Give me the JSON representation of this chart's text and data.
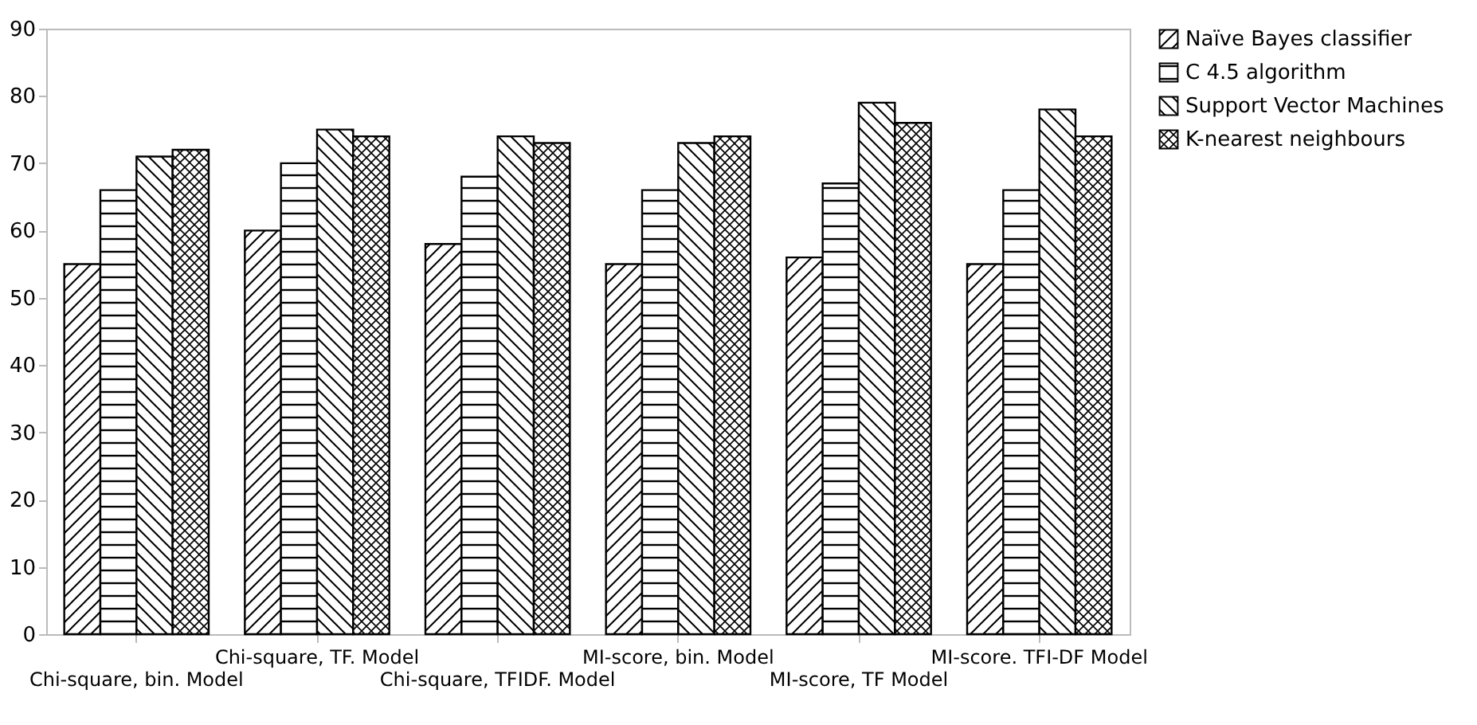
{
  "chart_data": {
    "type": "bar",
    "categories": [
      "Chi-square, bin. Model",
      "Chi-square, TF. Model",
      "Chi-square, TFIDF. Model",
      "MI-score, bin. Model",
      "MI-score, TF Model",
      "MI-score. TFI-DF Model"
    ],
    "series": [
      {
        "name": "Naïve Bayes classifier",
        "color": "#000000",
        "values": [
          55,
          60,
          58,
          55,
          56,
          55
        ]
      },
      {
        "name": "C 4.5 algorithm",
        "color": "#000000",
        "values": [
          66,
          70,
          68,
          66,
          67,
          66
        ]
      },
      {
        "name": "Support Vector Machines",
        "color": "#000000",
        "values": [
          71,
          75,
          74,
          73,
          79,
          78
        ]
      },
      {
        "name": "K-nearest neighbours",
        "color": "#000000",
        "values": [
          72,
          74,
          73,
          74,
          76,
          74
        ]
      }
    ],
    "ylim": [
      0,
      90
    ],
    "yticks": [
      0,
      10,
      20,
      30,
      40,
      50,
      60,
      70,
      80,
      90
    ],
    "grid": false,
    "legend": "right"
  }
}
